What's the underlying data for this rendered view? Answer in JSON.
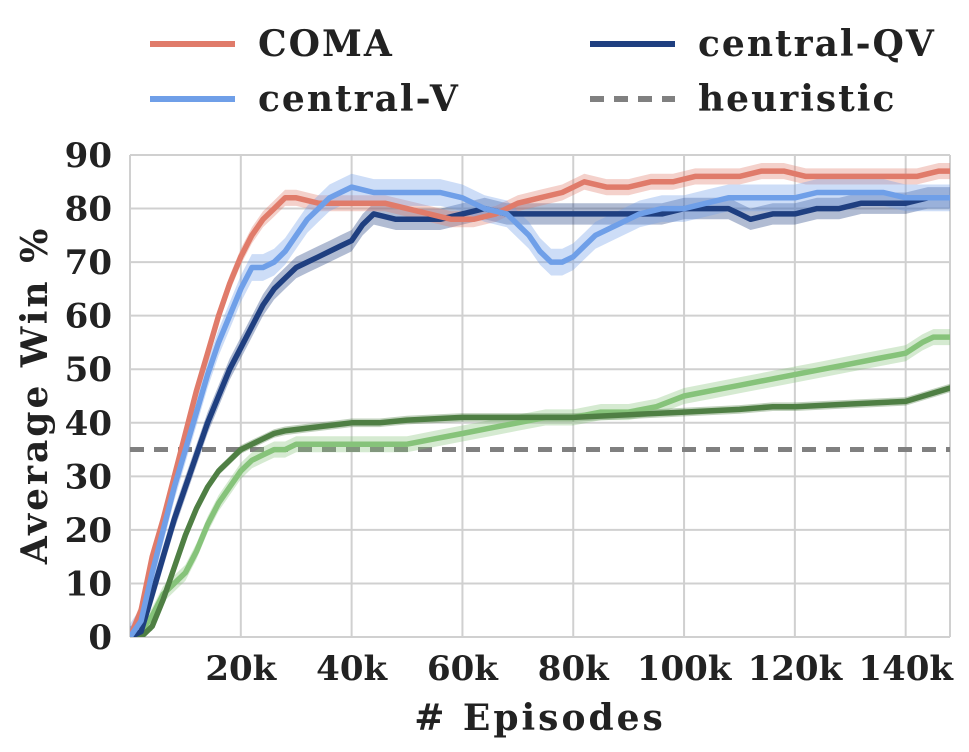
{
  "chart_data": {
    "type": "line",
    "title": "",
    "xlabel": "# Episodes",
    "ylabel": "Average Win %",
    "xlim": [
      0,
      148000
    ],
    "ylim": [
      0,
      90
    ],
    "x_ticks": [
      20000,
      40000,
      60000,
      80000,
      100000,
      120000,
      140000
    ],
    "x_tick_labels": [
      "20k",
      "40k",
      "60k",
      "80k",
      "100k",
      "120k",
      "140k"
    ],
    "y_ticks": [
      0,
      10,
      20,
      30,
      40,
      50,
      60,
      70,
      80,
      90
    ],
    "y_tick_labels": [
      "0",
      "10",
      "20",
      "30",
      "40",
      "50",
      "60",
      "70",
      "80",
      "90"
    ],
    "grid": true,
    "legend_placement": "top",
    "legend": [
      {
        "label": "COMA",
        "color": "#e07b6a",
        "style": "solid"
      },
      {
        "label": "central-QV",
        "color": "#1f3f80",
        "style": "solid"
      },
      {
        "label": "central-V",
        "color": "#6f9fe8",
        "style": "solid"
      },
      {
        "label": "heuristic",
        "color": "#808080",
        "style": "dashed"
      }
    ],
    "heuristic": {
      "y": 35,
      "color": "#808080"
    },
    "series": [
      {
        "key": "coma",
        "color": "#e07b6a",
        "band": 1.5,
        "x": [
          0,
          2000,
          4000,
          6000,
          8000,
          10000,
          12000,
          14000,
          16000,
          18000,
          20000,
          22000,
          24000,
          26000,
          28000,
          30000,
          34000,
          38000,
          42000,
          46000,
          50000,
          54000,
          58000,
          62000,
          66000,
          70000,
          74000,
          78000,
          82000,
          86000,
          90000,
          94000,
          98000,
          102000,
          106000,
          110000,
          114000,
          118000,
          122000,
          126000,
          130000,
          134000,
          138000,
          142000,
          146000,
          148000
        ],
        "values": [
          0,
          5,
          15,
          22,
          30,
          38,
          46,
          53,
          60,
          66,
          71,
          75,
          78,
          80,
          82,
          82,
          81,
          81,
          81,
          81,
          80,
          79,
          78,
          78,
          79,
          81,
          82,
          83,
          85,
          84,
          84,
          85,
          85,
          86,
          86,
          86,
          87,
          87,
          86,
          86,
          86,
          86,
          86,
          86,
          87,
          87
        ]
      },
      {
        "key": "central-v",
        "color": "#6f9fe8",
        "band": 2.5,
        "x": [
          0,
          2000,
          4000,
          6000,
          8000,
          10000,
          12000,
          14000,
          16000,
          18000,
          20000,
          22000,
          24000,
          26000,
          28000,
          30000,
          32000,
          34000,
          36000,
          38000,
          40000,
          44000,
          48000,
          52000,
          56000,
          60000,
          64000,
          68000,
          72000,
          74000,
          76000,
          78000,
          80000,
          82000,
          84000,
          88000,
          92000,
          96000,
          100000,
          104000,
          108000,
          112000,
          116000,
          120000,
          124000,
          128000,
          132000,
          136000,
          140000,
          144000,
          148000
        ],
        "values": [
          0,
          3,
          12,
          20,
          28,
          35,
          42,
          49,
          55,
          60,
          65,
          69,
          69,
          70,
          72,
          75,
          78,
          80,
          82,
          83,
          84,
          83,
          83,
          83,
          83,
          82,
          80,
          79,
          75,
          72,
          70,
          70,
          71,
          73,
          75,
          77,
          79,
          80,
          80,
          81,
          82,
          82,
          82,
          82,
          83,
          83,
          83,
          83,
          82,
          82,
          82
        ]
      },
      {
        "key": "central-qv",
        "color": "#1f3f80",
        "band": 2.0,
        "x": [
          0,
          2000,
          4000,
          6000,
          8000,
          10000,
          12000,
          14000,
          16000,
          18000,
          20000,
          22000,
          24000,
          26000,
          28000,
          30000,
          32000,
          34000,
          36000,
          38000,
          40000,
          42000,
          44000,
          48000,
          52000,
          56000,
          60000,
          64000,
          68000,
          72000,
          76000,
          80000,
          84000,
          88000,
          92000,
          96000,
          100000,
          104000,
          108000,
          110000,
          112000,
          116000,
          120000,
          124000,
          128000,
          132000,
          136000,
          140000,
          144000,
          148000
        ],
        "values": [
          0,
          1,
          8,
          15,
          22,
          28,
          34,
          40,
          45,
          50,
          54,
          58,
          62,
          65,
          67,
          69,
          70,
          71,
          72,
          73,
          74,
          77,
          79,
          78,
          78,
          78,
          79,
          80,
          79,
          79,
          79,
          79,
          79,
          79,
          79,
          79,
          80,
          80,
          80,
          79,
          78,
          79,
          79,
          80,
          80,
          81,
          81,
          81,
          82,
          82
        ]
      },
      {
        "key": "green-dark",
        "color": "#4f7f44",
        "band": 0.8,
        "x": [
          0,
          2000,
          4000,
          6000,
          8000,
          10000,
          12000,
          14000,
          16000,
          18000,
          20000,
          22000,
          24000,
          26000,
          28000,
          32000,
          36000,
          40000,
          45000,
          50000,
          60000,
          70000,
          80000,
          90000,
          100000,
          110000,
          116000,
          120000,
          130000,
          140000,
          148000
        ],
        "values": [
          0,
          0,
          2,
          7,
          13,
          19,
          24,
          28,
          31,
          33,
          35,
          36,
          37,
          38,
          38.5,
          39,
          39.5,
          40,
          40,
          40.5,
          41,
          41,
          41,
          41.5,
          42,
          42.5,
          43,
          43,
          43.5,
          44,
          46.5
        ]
      },
      {
        "key": "green-light",
        "color": "#86c37a",
        "band": 1.5,
        "x": [
          0,
          2000,
          4000,
          6000,
          8000,
          10000,
          12000,
          14000,
          16000,
          18000,
          20000,
          22000,
          24000,
          26000,
          28000,
          30000,
          35000,
          40000,
          45000,
          50000,
          55000,
          60000,
          65000,
          70000,
          75000,
          80000,
          85000,
          90000,
          95000,
          100000,
          105000,
          110000,
          115000,
          120000,
          125000,
          130000,
          135000,
          140000,
          143000,
          145000,
          148000
        ],
        "values": [
          0,
          1,
          4,
          8,
          10,
          12,
          16,
          21,
          25,
          28,
          31,
          33,
          34,
          35,
          35,
          36,
          36,
          36,
          36,
          36,
          37,
          38,
          39,
          40,
          41,
          41,
          42,
          42,
          43,
          45,
          46,
          47,
          48,
          49,
          50,
          51,
          52,
          53,
          55,
          56,
          56
        ]
      }
    ]
  }
}
